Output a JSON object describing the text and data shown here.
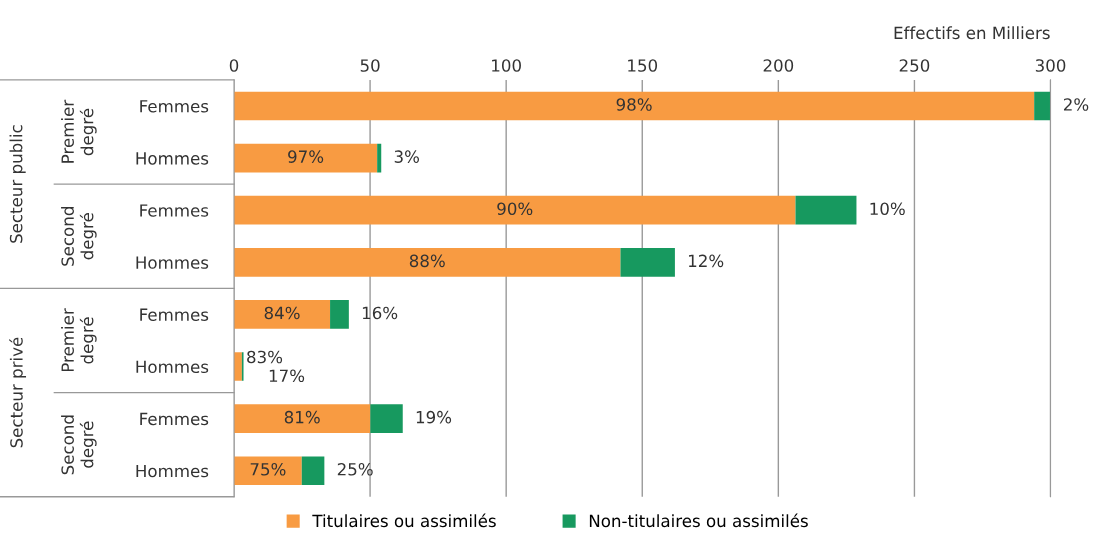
{
  "chart_data": {
    "type": "bar",
    "orientation": "horizontal",
    "stacked": true,
    "xlabel": "Effectifs en Milliers",
    "categories": [
      "Femmes",
      "Hommes",
      "Femmes",
      "Hommes",
      "Femmes",
      "Hommes",
      "Femmes",
      "Hommes"
    ],
    "series": [
      {
        "name": "Titulaires ou assimilés",
        "color": "#f89b42",
        "values": [
          294,
          52.6,
          206.3,
          142,
          35.3,
          2.9,
          50.1,
          24.9
        ]
      },
      {
        "name": "Non-titulaires ou assimilés",
        "color": "#17995f",
        "values": [
          6,
          1.5,
          22.4,
          20,
          6.9,
          0.6,
          11.9,
          8.3
        ]
      }
    ],
    "xlim": [
      0,
      300
    ],
    "xticks": [
      0,
      50,
      100,
      150,
      200,
      250,
      300
    ],
    "grid": "x",
    "legend": "bottom",
    "annotations": [
      "Premier\ndegré",
      "Second\ndegré",
      "Premier\ndegré",
      "Second\ndegré",
      "Secteur public",
      "Secteur privé",
      "98%",
      "97%",
      "90%",
      "88%",
      "84%",
      "83%",
      "81%",
      "75%",
      "2%",
      "3%",
      "10%",
      "12%",
      "16%",
      "17%",
      "19%",
      "25%"
    ]
  }
}
